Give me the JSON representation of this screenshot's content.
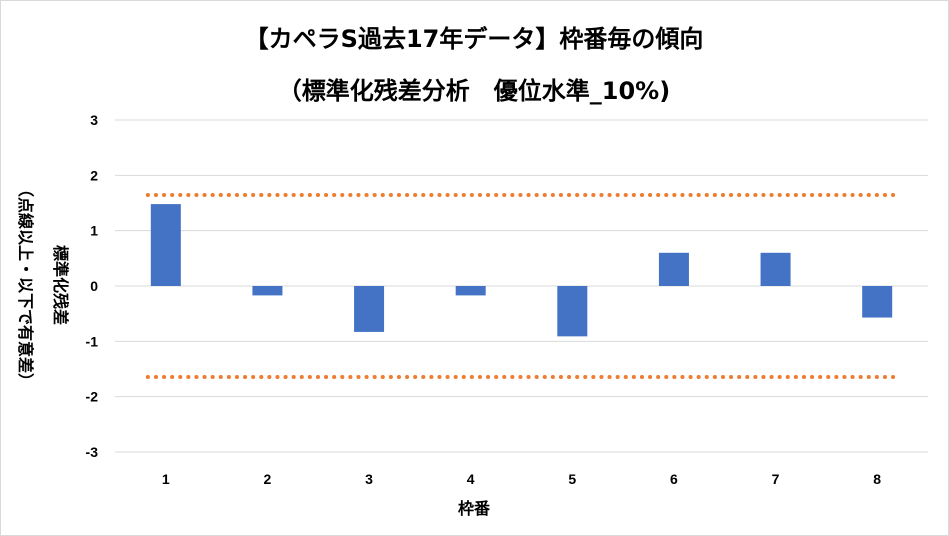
{
  "chart_data": {
    "type": "bar",
    "title": "【カペラS過去17年データ】枠番毎の傾向",
    "subtitle": "（標準化残差分析　優位水準_10%)",
    "xlabel": "枠番",
    "ylabel": "標準化残差",
    "ylabel_note": "（点線以上・以下で有意差）",
    "categories": [
      "1",
      "2",
      "3",
      "4",
      "5",
      "6",
      "7",
      "8"
    ],
    "values": [
      1.48,
      -0.17,
      -0.83,
      -0.17,
      -0.91,
      0.6,
      0.6,
      -0.57
    ],
    "ylim": [
      -3,
      3
    ],
    "yticks": [
      3,
      2,
      1,
      0,
      -1,
      -2,
      -3
    ],
    "threshold_upper": 1.645,
    "threshold_lower": -1.645,
    "grid": true,
    "legend": "none",
    "colors": {
      "bar": "#4472c4",
      "threshold": "#ed7d31",
      "grid": "#d9d9d9"
    }
  }
}
